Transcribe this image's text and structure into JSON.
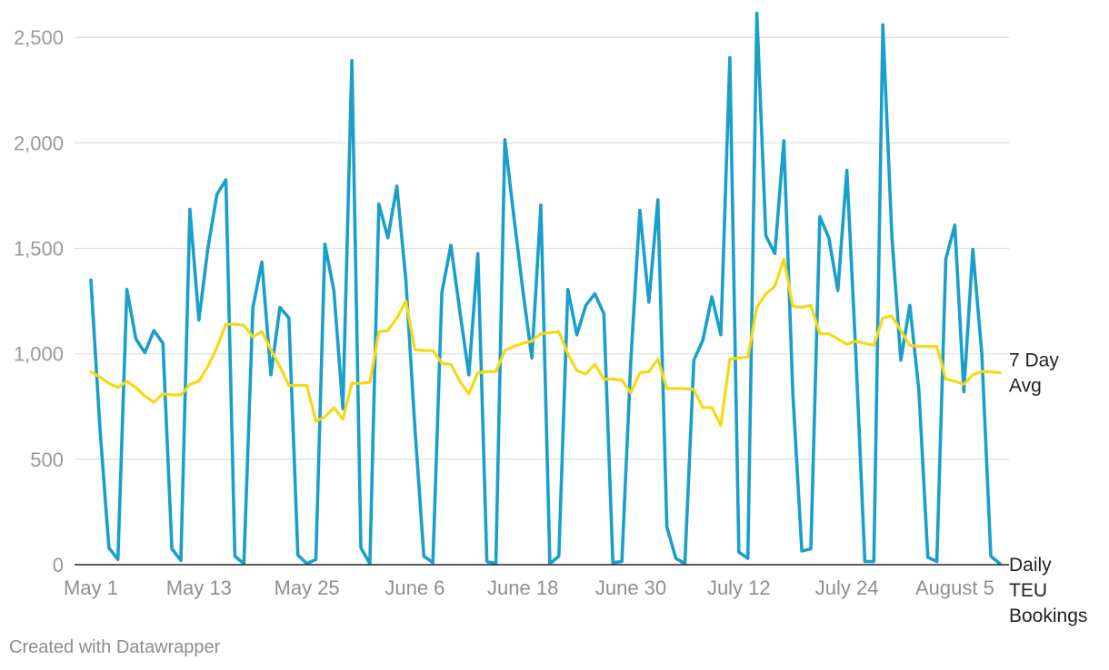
{
  "chart_data": {
    "type": "line",
    "title": "",
    "xlabel": "",
    "ylabel": "",
    "ylim": [
      0,
      2600
    ],
    "y_ticks": [
      0,
      500,
      1000,
      1500,
      2000,
      2500
    ],
    "y_tick_labels": [
      "0",
      "500",
      "1,000",
      "1,500",
      "2,000",
      "2,500"
    ],
    "x_range": [
      0,
      100
    ],
    "x_ticks": [
      {
        "label": "May 1",
        "index": 0
      },
      {
        "label": "May 13",
        "index": 12
      },
      {
        "label": "May 25",
        "index": 24
      },
      {
        "label": "June 6",
        "index": 36
      },
      {
        "label": "June 18",
        "index": 48
      },
      {
        "label": "June 30",
        "index": 60
      },
      {
        "label": "July 12",
        "index": 72
      },
      {
        "label": "July 24",
        "index": 84
      },
      {
        "label": "August 5",
        "index": 96
      }
    ],
    "grid": true,
    "series": [
      {
        "name": "Daily TEU Bookings",
        "label_lines": [
          "Daily",
          "TEU",
          "Bookings"
        ],
        "color": "#1a9fcb",
        "values": [
          1350,
          650,
          80,
          25,
          1305,
          1070,
          1005,
          1110,
          1050,
          75,
          20,
          1685,
          1160,
          1500,
          1755,
          1825,
          40,
          5,
          1220,
          1435,
          900,
          1220,
          1170,
          45,
          5,
          25,
          1520,
          1300,
          740,
          2390,
          80,
          5,
          1710,
          1550,
          1795,
          1350,
          650,
          40,
          10,
          1290,
          1515,
          1200,
          900,
          1475,
          15,
          5,
          2015,
          1650,
          1300,
          980,
          1705,
          5,
          40,
          1305,
          1090,
          1230,
          1285,
          1190,
          10,
          15,
          970,
          1680,
          1245,
          1730,
          180,
          30,
          5,
          970,
          1065,
          1270,
          1090,
          2405,
          60,
          30,
          2615,
          1560,
          1475,
          2010,
          810,
          65,
          75,
          1650,
          1550,
          1300,
          1870,
          1000,
          15,
          15,
          2560,
          1560,
          970,
          1230,
          830,
          35,
          15,
          1450,
          1610,
          820,
          1495,
          1000,
          40,
          5
        ]
      },
      {
        "name": "7 Day Avg",
        "label_lines": [
          "7 Day",
          "Avg"
        ],
        "color": "#f6d916",
        "values": [
          915,
          890,
          860,
          840,
          870,
          840,
          800,
          770,
          810,
          805,
          805,
          855,
          870,
          940,
          1030,
          1140,
          1140,
          1135,
          1080,
          1105,
          1020,
          940,
          850,
          850,
          850,
          680,
          700,
          745,
          690,
          860,
          860,
          865,
          1105,
          1110,
          1170,
          1250,
          1020,
          1015,
          1015,
          955,
          950,
          870,
          810,
          910,
          915,
          915,
          1015,
          1035,
          1050,
          1060,
          1095,
          1100,
          1105,
          1000,
          920,
          905,
          950,
          880,
          880,
          875,
          815,
          910,
          915,
          975,
          835,
          835,
          835,
          830,
          745,
          745,
          660,
          975,
          980,
          985,
          1220,
          1285,
          1320,
          1450,
          1225,
          1220,
          1230,
          1095,
          1095,
          1070,
          1045,
          1060,
          1050,
          1040,
          1170,
          1180,
          1110,
          1040,
          1035,
          1035,
          1035,
          880,
          870,
          855,
          900,
          915,
          915,
          910
        ]
      }
    ]
  },
  "footer": {
    "credit": "Created with Datawrapper"
  }
}
